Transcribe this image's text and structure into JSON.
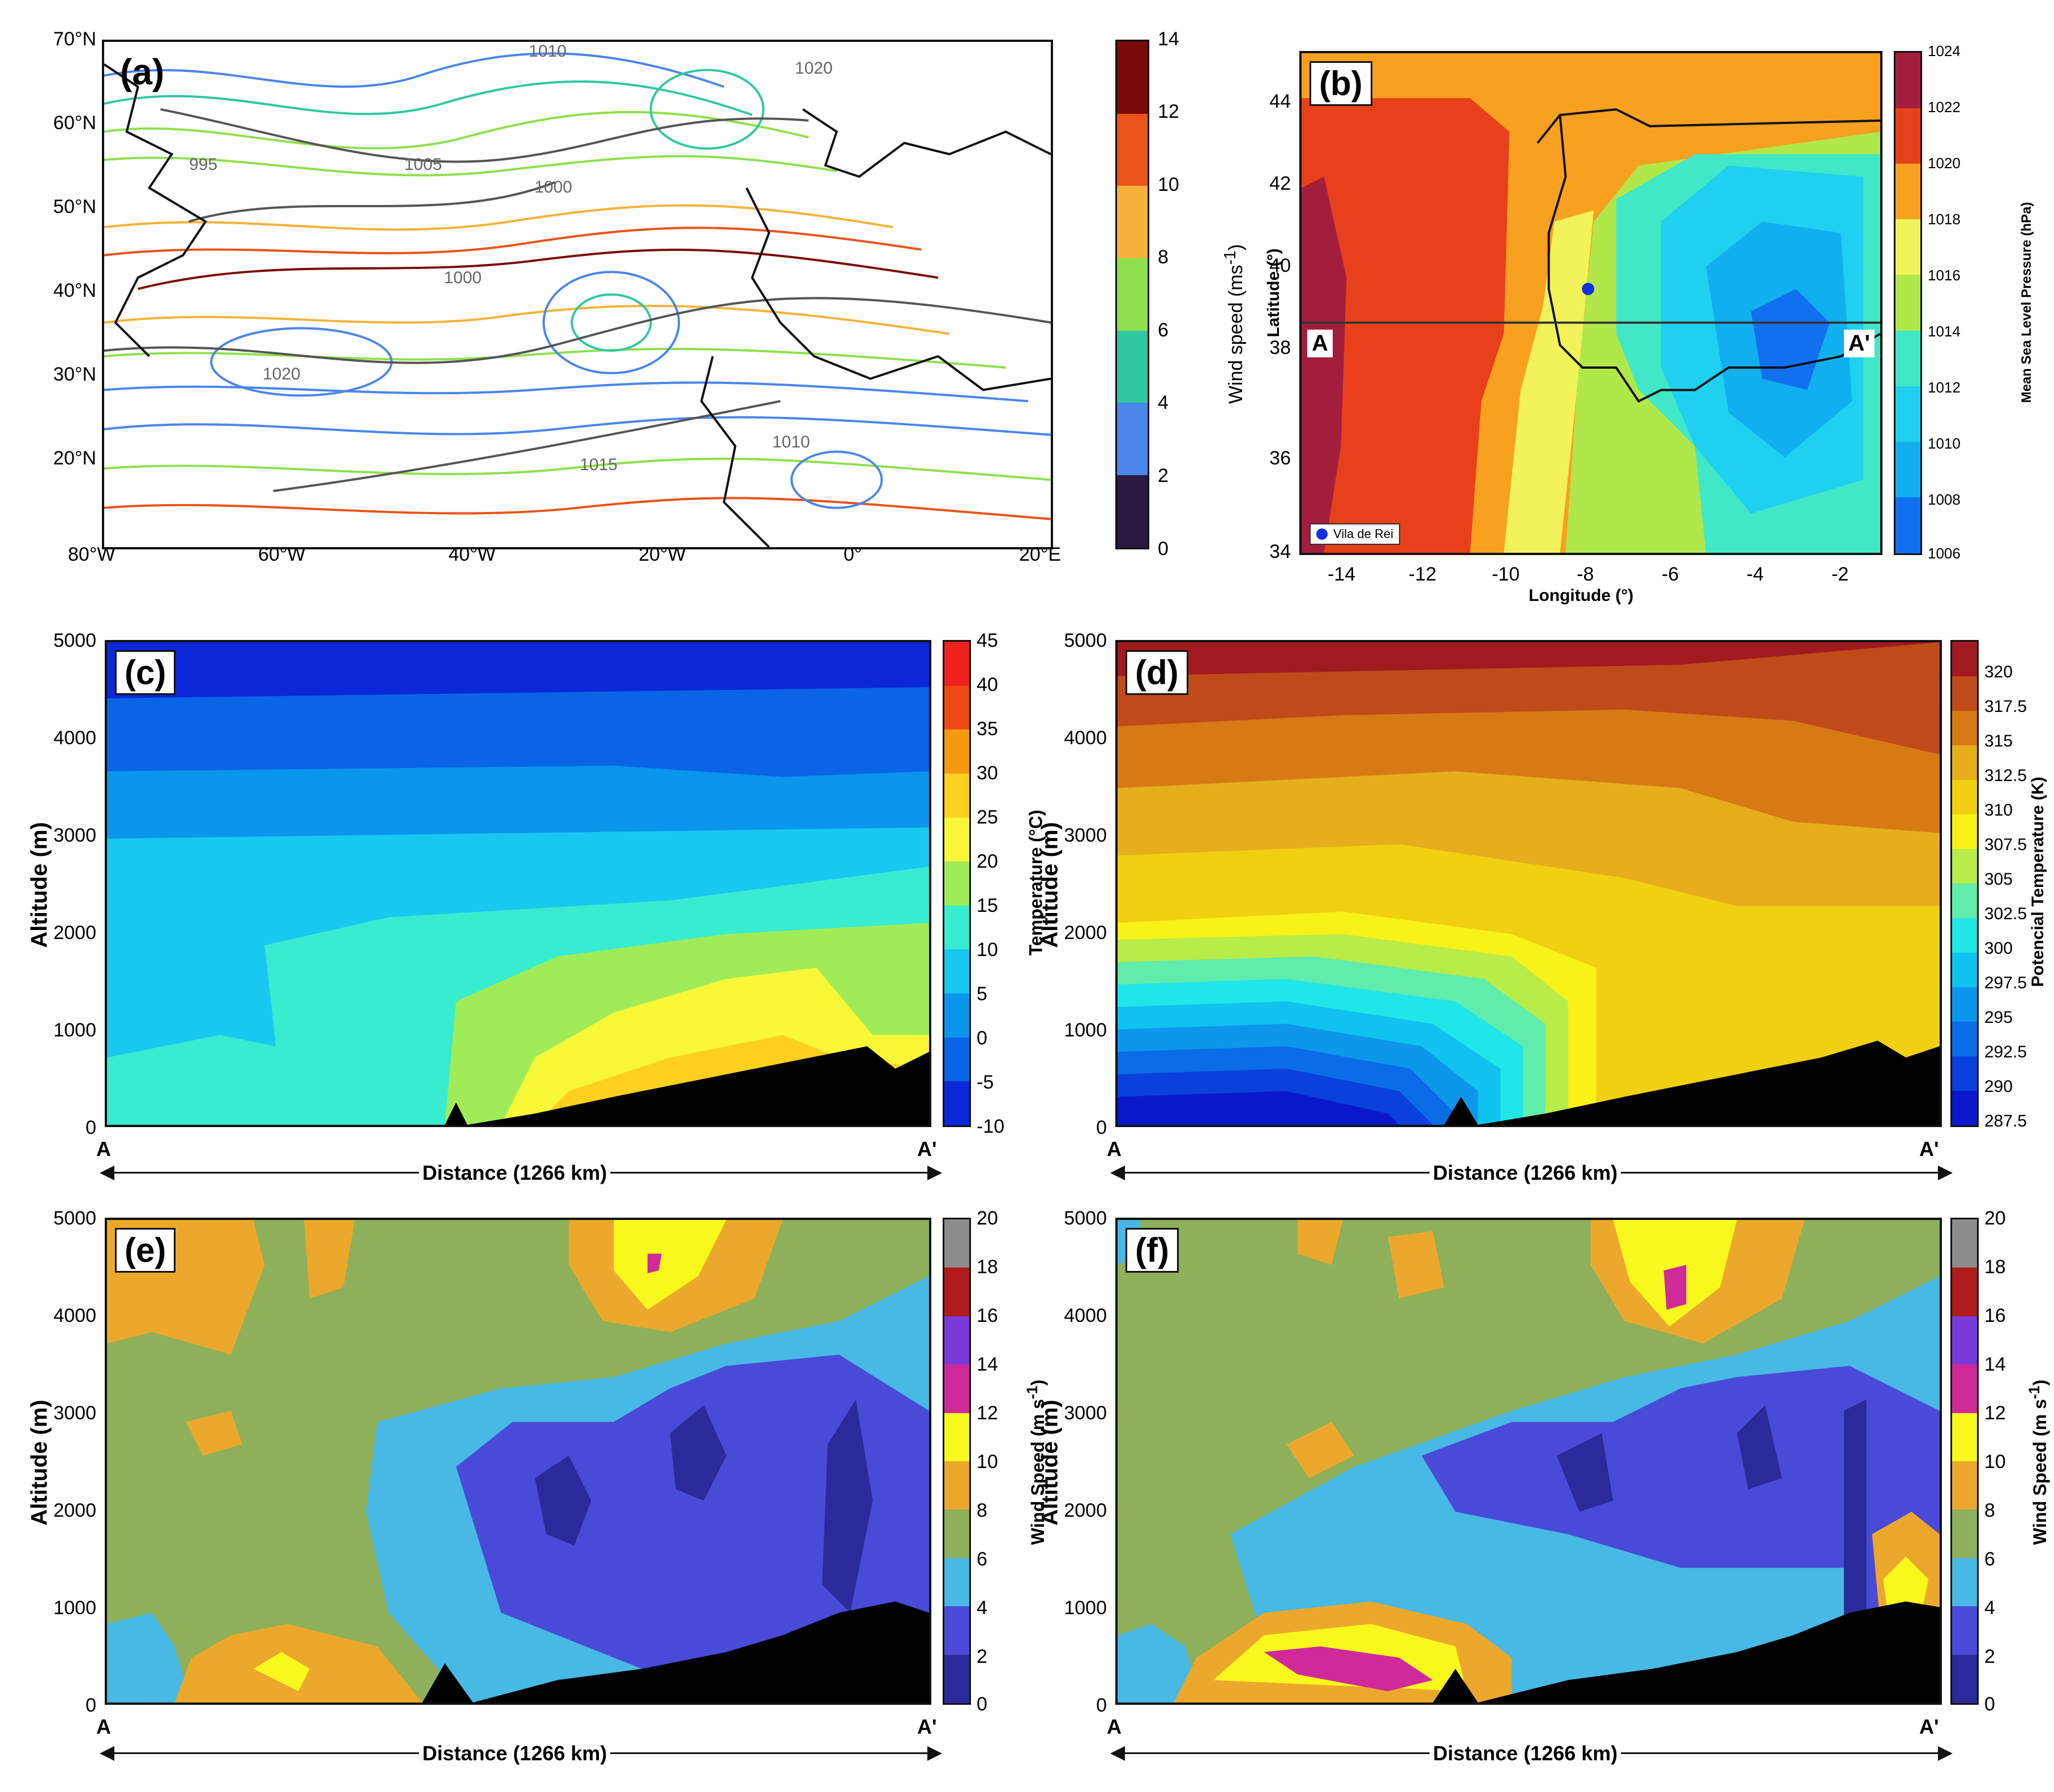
{
  "panel_a": {
    "letter": "(a)",
    "lat_ticks": [
      "70°N",
      "60°N",
      "50°N",
      "40°N",
      "30°N",
      "20°N"
    ],
    "lon_ticks": [
      "80°W",
      "60°W",
      "40°W",
      "20°W",
      "0°",
      "20°E"
    ],
    "isobar_labels": [
      "1010",
      "1005",
      "1000",
      "1000",
      "1020",
      "1015",
      "1010",
      "995",
      "1020"
    ],
    "colorbar": {
      "label": "Wind speed (ms",
      "label_sup": "-1",
      "label_end": ")",
      "ticks": [
        "14",
        "12",
        "10",
        "8",
        "6",
        "4",
        "2",
        "0"
      ],
      "colors": [
        "#7a0a0a",
        "#e8541a",
        "#f6b23a",
        "#8ee04e",
        "#2fc8a0",
        "#4a86ea",
        "#2a1a40"
      ]
    }
  },
  "panel_b": {
    "letter": "(b)",
    "lat_ticks": [
      "44",
      "42",
      "40",
      "38",
      "36",
      "34"
    ],
    "lon_ticks": [
      "-14",
      "-12",
      "-10",
      "-8",
      "-6",
      "-4",
      "-2"
    ],
    "ylabel": "Latitude (°)",
    "xlabel": "Longitude (°)",
    "section_start": "A",
    "section_end": "A'",
    "legend": "Vila de Rei",
    "colorbar": {
      "label": "Mean Sea Level Pressure (hPa)",
      "ticks": [
        "1024",
        "1022",
        "1020",
        "1018",
        "1016",
        "1014",
        "1012",
        "1010",
        "1008",
        "1006"
      ],
      "colors": [
        "#a31e3c",
        "#e8401a",
        "#f8a020",
        "#f2f25a",
        "#b0e84a",
        "#40e8c8",
        "#20d0f0",
        "#10b0f0",
        "#1070f0"
      ]
    }
  },
  "panel_c": {
    "letter": "(c)",
    "ylabel": "Altitude (m)",
    "yticks": [
      "5000",
      "4000",
      "3000",
      "2000",
      "1000",
      "0"
    ],
    "start": "A",
    "end": "A'",
    "distance": "Distance (1266 km)",
    "colorbar": {
      "label": "Temperature (°C)",
      "ticks": [
        "45",
        "40",
        "35",
        "30",
        "25",
        "20",
        "15",
        "10",
        "5",
        "0",
        "-5",
        "-10"
      ],
      "colors": [
        "#f0201c",
        "#f04a14",
        "#f59a10",
        "#ffd020",
        "#f8f838",
        "#a0ec58",
        "#38ecd0",
        "#18c8f0",
        "#0a96ec",
        "#0a64e6",
        "#0a28d8"
      ]
    }
  },
  "panel_d": {
    "letter": "(d)",
    "ylabel": "Altitude (m)",
    "yticks": [
      "5000",
      "4000",
      "3000",
      "2000",
      "1000",
      "0"
    ],
    "start": "A",
    "end": "A'",
    "distance": "Distance (1266 km)",
    "colorbar": {
      "label": "Potencial Temperature (K)",
      "ticks": [
        "320",
        "317.5",
        "315",
        "312.5",
        "310",
        "307.5",
        "305",
        "302.5",
        "300",
        "297.5",
        "295",
        "292.5",
        "290",
        "287.5"
      ],
      "colors": [
        "#a01a20",
        "#c04a1a",
        "#d87a14",
        "#e6ae1c",
        "#f0d010",
        "#f8f218",
        "#b8ec48",
        "#60ecaa",
        "#20e6e8",
        "#10c2f0",
        "#0c96ec",
        "#0a6ce6",
        "#0a40dc",
        "#0a18cc"
      ]
    }
  },
  "panel_e": {
    "letter": "(e)",
    "ylabel": "Altitude (m)",
    "yticks": [
      "5000",
      "4000",
      "3000",
      "2000",
      "1000",
      "0"
    ],
    "start": "A",
    "end": "A'",
    "distance": "Distance (1266 km)",
    "colorbar": {
      "label": "Wind Speed (m s",
      "label_sup": "-1",
      "label_end": ")",
      "ticks": [
        "20",
        "18",
        "16",
        "14",
        "12",
        "10",
        "8",
        "6",
        "4",
        "2",
        "0"
      ],
      "colors": [
        "#8c8c8c",
        "#b01a1a",
        "#7a3ad8",
        "#d02a9a",
        "#f8f81c",
        "#eca82c",
        "#8eb05a",
        "#48b8e4",
        "#4a4ad8",
        "#2a2a9a"
      ]
    }
  },
  "panel_f": {
    "letter": "(f)",
    "ylabel": "Altitude (m)",
    "yticks": [
      "5000",
      "4000",
      "3000",
      "2000",
      "1000",
      "0"
    ],
    "start": "A",
    "end": "A'",
    "distance": "Distance (1266 km)",
    "colorbar": {
      "label": "Wind Speed (m s",
      "label_sup": "-1",
      "label_end": ")",
      "ticks": [
        "20",
        "18",
        "16",
        "14",
        "12",
        "10",
        "8",
        "6",
        "4",
        "2",
        "0"
      ],
      "colors": [
        "#8c8c8c",
        "#b01a1a",
        "#7a3ad8",
        "#d02a9a",
        "#f8f81c",
        "#eca82c",
        "#8eb05a",
        "#48b8e4",
        "#4a4ad8",
        "#2a2a9a"
      ]
    }
  }
}
